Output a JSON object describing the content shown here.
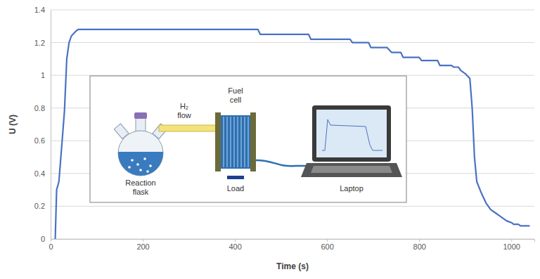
{
  "chart_data": {
    "type": "line",
    "x_label": "Time (s)",
    "y_label": "U (V)",
    "color": "#4a72c4",
    "grid": true,
    "xlim": [
      0,
      1050
    ],
    "xticks": [
      0,
      200,
      400,
      600,
      800,
      1000
    ],
    "ylim": [
      0,
      1.4
    ],
    "yticks": [
      0,
      0.2,
      0.4,
      0.6,
      0.8,
      1,
      1.2,
      1.4
    ],
    "x": [
      10,
      13,
      18,
      25,
      30,
      35,
      40,
      45,
      55,
      60,
      450,
      455,
      560,
      565,
      650,
      655,
      690,
      695,
      730,
      740,
      760,
      765,
      800,
      805,
      840,
      845,
      870,
      875,
      885,
      890,
      900,
      910,
      915,
      920,
      925,
      935,
      945,
      955,
      965,
      975,
      990,
      1000,
      1005,
      1015,
      1020,
      1040
    ],
    "values": [
      0,
      0.3,
      0.35,
      0.6,
      0.78,
      1.1,
      1.2,
      1.24,
      1.27,
      1.28,
      1.28,
      1.25,
      1.25,
      1.22,
      1.22,
      1.2,
      1.2,
      1.17,
      1.17,
      1.14,
      1.14,
      1.11,
      1.11,
      1.09,
      1.09,
      1.06,
      1.06,
      1.05,
      1.05,
      1.03,
      1.01,
      0.98,
      0.8,
      0.5,
      0.35,
      0.28,
      0.22,
      0.18,
      0.16,
      0.14,
      0.11,
      0.1,
      0.09,
      0.09,
      0.08,
      0.08
    ],
    "annotations": [
      "Reaction flask",
      "H₂ flow",
      "Fuel cell",
      "Load",
      "Laptop"
    ]
  }
}
